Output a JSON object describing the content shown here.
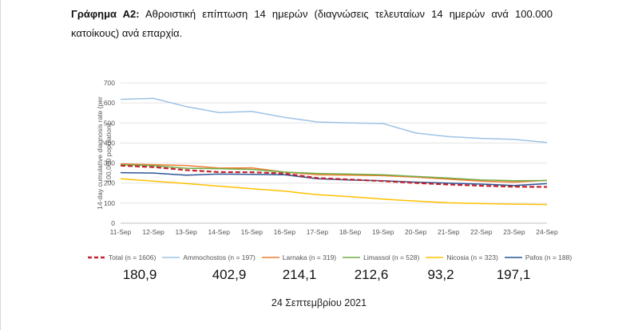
{
  "caption": {
    "lead": "Γράφημα Α2:",
    "text": " Αθροιστική επίπτωση 14 ημερών (διαγνώσεις τελευταίων 14 ημερών ανά 100.000 κατοίκους) ανά επαρχία."
  },
  "chart_data": {
    "type": "line",
    "categories": [
      "11-Sep",
      "12-Sep",
      "13-Sep",
      "14-Sep",
      "15-Sep",
      "16-Sep",
      "17-Sep",
      "18-Sep",
      "19-Sep",
      "20-Sep",
      "21-Sep",
      "22-Sep",
      "23-Sep",
      "24-Sep"
    ],
    "ylabel": "14-day cumulative diagnosis rate (per 100,000 population)",
    "ylim": [
      0,
      700
    ],
    "yticks": [
      0,
      100,
      200,
      300,
      400,
      500,
      600,
      700
    ],
    "grid": true,
    "legend_placement": "bottom",
    "series": [
      {
        "name": "Total (n = 1606)",
        "color": "#c0232c",
        "dashed": true,
        "values": [
          287,
          280,
          265,
          255,
          254,
          248,
          225,
          218,
          210,
          201,
          193,
          187,
          182,
          180.9
        ]
      },
      {
        "name": "Ammochostos (n = 197)",
        "color": "#9dc3e6",
        "dashed": false,
        "values": [
          618,
          623,
          582,
          552,
          558,
          528,
          505,
          500,
          497,
          450,
          432,
          423,
          418,
          402.9
        ]
      },
      {
        "name": "Larnaka (n = 319)",
        "color": "#ed7d31",
        "dashed": false,
        "values": [
          296,
          292,
          288,
          275,
          276,
          255,
          242,
          240,
          237,
          230,
          220,
          210,
          205,
          214.1
        ]
      },
      {
        "name": "Limassol (n = 528)",
        "color": "#70ad47",
        "dashed": false,
        "values": [
          292,
          287,
          274,
          272,
          268,
          255,
          248,
          245,
          242,
          233,
          225,
          216,
          212,
          212.6
        ]
      },
      {
        "name": "Nicosia (n = 323)",
        "color": "#ffc000",
        "dashed": false,
        "values": [
          222,
          210,
          198,
          185,
          172,
          160,
          142,
          132,
          120,
          110,
          102,
          98,
          95,
          93.2
        ]
      },
      {
        "name": "Pafos (n = 188)",
        "color": "#2e5597",
        "dashed": false,
        "values": [
          252,
          250,
          240,
          245,
          244,
          242,
          222,
          215,
          212,
          205,
          200,
          195,
          188,
          197.1
        ]
      }
    ]
  },
  "summary_values": [
    "180,9",
    "402,9",
    "214,1",
    "212,6",
    "93,2",
    "197,1"
  ],
  "footer_date": "24 Σεπτεμβρίου 2021"
}
